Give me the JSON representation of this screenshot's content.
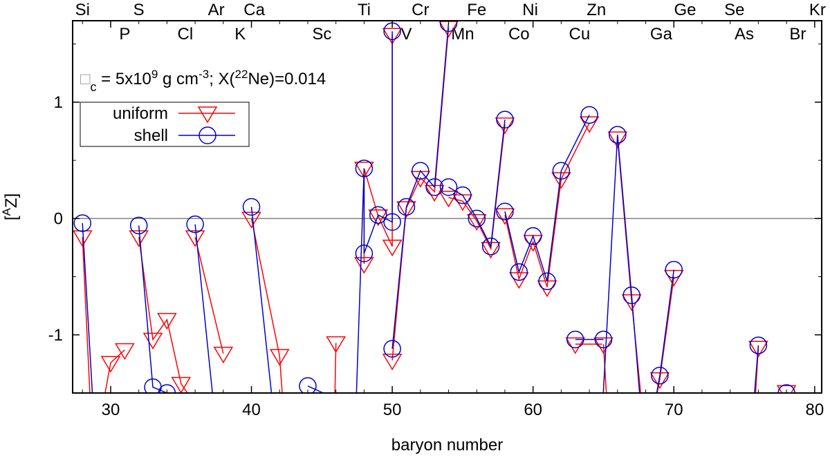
{
  "chart_data": {
    "type": "line",
    "xlabel": "baryon number",
    "ylabel": "[ᴬZ]",
    "ylabel_main": "[",
    "ylabel_sup": "A",
    "ylabel_end": "Z]",
    "xlim": [
      27.3,
      80.5
    ],
    "ylim": [
      -1.5,
      1.7
    ],
    "xticks": [
      30,
      40,
      50,
      60,
      70,
      80
    ],
    "yticks": [
      -1,
      0,
      1
    ],
    "hline": 0,
    "grid": false,
    "annotation": {
      "symbol": "□",
      "sub": "c",
      "mid": " = 5x10",
      "sup1": "9",
      "mid2": " g cm",
      "sup2": "-3",
      "mid3": "; X(",
      "sup3": "22",
      "end": "Ne)=0.014"
    },
    "legend": {
      "position": "upper-left",
      "entries": [
        {
          "label": "uniform",
          "color": "#ff0000",
          "marker": "triangle-down"
        },
        {
          "label": "shell",
          "color": "#0000cc",
          "marker": "circle"
        }
      ]
    },
    "element_labels_top": [
      {
        "text": "Si",
        "x": 28
      },
      {
        "text": "S",
        "x": 32
      },
      {
        "text": "Ar",
        "x": 37.5
      },
      {
        "text": "Ca",
        "x": 40.2
      },
      {
        "text": "Ti",
        "x": 48
      },
      {
        "text": "Cr",
        "x": 52
      },
      {
        "text": "Fe",
        "x": 56
      },
      {
        "text": "Ni",
        "x": 59.8
      },
      {
        "text": "Zn",
        "x": 64.5
      },
      {
        "text": "Ge",
        "x": 70.8
      },
      {
        "text": "Se",
        "x": 74.3
      },
      {
        "text": "Kr",
        "x": 80.2
      }
    ],
    "element_labels_bottom": [
      {
        "text": "P",
        "x": 31
      },
      {
        "text": "Cl",
        "x": 35.3
      },
      {
        "text": "K",
        "x": 39.2
      },
      {
        "text": "Sc",
        "x": 45
      },
      {
        "text": "V",
        "x": 51
      },
      {
        "text": "Mn",
        "x": 55
      },
      {
        "text": "Co",
        "x": 59
      },
      {
        "text": "Cu",
        "x": 63.3
      },
      {
        "text": "Ga",
        "x": 69.1
      },
      {
        "text": "As",
        "x": 75
      },
      {
        "text": "Br",
        "x": 78.8
      }
    ],
    "series": [
      {
        "name": "uniform",
        "color": "#ff0000",
        "marker": "triangle-down",
        "segments": [
          [
            [
              28,
              -0.16
            ],
            [
              28.6,
              -1.7
            ]
          ],
          [
            [
              29.3,
              -1.7
            ],
            [
              30,
              -1.24
            ],
            [
              31,
              -1.13
            ]
          ],
          [
            [
              32,
              -0.16
            ],
            [
              33,
              -1.04
            ],
            [
              34,
              -0.87
            ],
            [
              35,
              -1.42
            ],
            [
              36,
              -1.6
            ]
          ],
          [
            [
              36,
              -0.16
            ],
            [
              38,
              -1.16
            ]
          ],
          [
            [
              40,
              0.0
            ],
            [
              42,
              -1.18
            ],
            [
              42.3,
              -1.7
            ]
          ],
          [
            [
              46,
              -1.07
            ],
            [
              45.9,
              -1.7
            ]
          ],
          [
            [
              48,
              -0.39
            ],
            [
              48,
              0.43
            ],
            [
              49,
              0.02
            ],
            [
              50,
              -0.24
            ],
            [
              50,
              1.58
            ]
          ],
          [
            [
              50,
              -1.22
            ],
            [
              51,
              0.09
            ],
            [
              52,
              0.35
            ],
            [
              53,
              0.23
            ],
            [
              54,
              1.64
            ]
          ],
          [
            [
              54,
              0.18
            ],
            [
              55,
              0.15
            ],
            [
              56,
              -0.02
            ],
            [
              57,
              -0.26
            ],
            [
              58,
              0.81
            ]
          ],
          [
            [
              58,
              0.03
            ],
            [
              59,
              -0.52
            ],
            [
              60,
              -0.2
            ],
            [
              61,
              -0.59
            ],
            [
              62,
              0.34
            ],
            [
              64,
              0.82
            ]
          ],
          [
            [
              66,
              0.69
            ],
            [
              67,
              -0.71
            ],
            [
              67.8,
              -1.7
            ]
          ],
          [
            [
              63,
              -1.08
            ],
            [
              64.9,
              -1.08
            ]
          ],
          [
            [
              65,
              -1.08
            ],
            [
              65.3,
              -1.7
            ]
          ],
          [
            [
              69,
              -1.38
            ],
            [
              70,
              -0.5
            ]
          ],
          [
            [
              69,
              -1.38
            ],
            [
              68.5,
              -1.7
            ]
          ],
          [
            [
              76,
              -1.11
            ],
            [
              75.7,
              -1.7
            ]
          ],
          [
            [
              78,
              -1.49
            ],
            [
              77.7,
              -1.7
            ]
          ]
        ],
        "points": [
          [
            28,
            -0.16
          ],
          [
            30,
            -1.24
          ],
          [
            31,
            -1.13
          ],
          [
            32,
            -0.16
          ],
          [
            33,
            -1.04
          ],
          [
            34,
            -0.87
          ],
          [
            35,
            -1.42
          ],
          [
            36,
            -0.16
          ],
          [
            38,
            -1.16
          ],
          [
            40,
            0.0
          ],
          [
            42,
            -1.18
          ],
          [
            46,
            -1.07
          ],
          [
            48,
            -0.39
          ],
          [
            48,
            0.43
          ],
          [
            49,
            0.02
          ],
          [
            50,
            -0.24
          ],
          [
            50,
            1.58
          ],
          [
            50,
            -1.22
          ],
          [
            51,
            0.09
          ],
          [
            52,
            0.35
          ],
          [
            53,
            0.23
          ],
          [
            54,
            1.64
          ],
          [
            54,
            0.18
          ],
          [
            55,
            0.15
          ],
          [
            56,
            -0.02
          ],
          [
            57,
            -0.26
          ],
          [
            58,
            0.81
          ],
          [
            58,
            0.03
          ],
          [
            59,
            -0.52
          ],
          [
            60,
            -0.2
          ],
          [
            61,
            -0.59
          ],
          [
            62,
            0.34
          ],
          [
            64,
            0.82
          ],
          [
            63,
            -1.08
          ],
          [
            65,
            -1.08
          ],
          [
            66,
            0.69
          ],
          [
            67,
            -0.71
          ],
          [
            69,
            -1.38
          ],
          [
            70,
            -0.5
          ],
          [
            76,
            -1.11
          ],
          [
            78,
            -1.49
          ]
        ]
      },
      {
        "name": "shell",
        "color": "#0000cc",
        "marker": "circle",
        "segments": [
          [
            [
              28,
              -0.04
            ],
            [
              28.8,
              -1.7
            ]
          ],
          [
            [
              32,
              -0.06
            ],
            [
              33,
              -1.45
            ],
            [
              34,
              -1.5
            ]
          ],
          [
            [
              36,
              -0.05
            ],
            [
              37.4,
              -1.7
            ]
          ],
          [
            [
              40,
              0.1
            ],
            [
              41.6,
              -1.7
            ]
          ],
          [
            [
              44,
              -1.44
            ],
            [
              46,
              -1.55
            ]
          ],
          [
            [
              47.4,
              -1.7
            ],
            [
              48,
              0.43
            ],
            [
              48,
              -0.3
            ],
            [
              49,
              0.03
            ],
            [
              50,
              -0.03
            ],
            [
              50,
              1.61
            ]
          ],
          [
            [
              50,
              -1.12
            ],
            [
              51,
              0.1
            ],
            [
              52,
              0.41
            ],
            [
              53,
              0.27
            ],
            [
              54,
              1.68
            ]
          ],
          [
            [
              54,
              0.27
            ],
            [
              55,
              0.2
            ],
            [
              56,
              0.0
            ],
            [
              57,
              -0.24
            ],
            [
              58,
              0.85
            ]
          ],
          [
            [
              58,
              0.06
            ],
            [
              59,
              -0.46
            ],
            [
              60,
              -0.15
            ],
            [
              61,
              -0.54
            ],
            [
              62,
              0.41
            ],
            [
              64,
              0.89
            ]
          ],
          [
            [
              64.9,
              -1.7
            ],
            [
              66,
              0.72
            ],
            [
              67,
              -0.66
            ],
            [
              67.7,
              -1.7
            ]
          ],
          [
            [
              63,
              -1.04
            ],
            [
              65,
              -1.04
            ]
          ],
          [
            [
              68.5,
              -1.7
            ],
            [
              69,
              -1.35
            ],
            [
              70,
              -0.44
            ]
          ],
          [
            [
              75.6,
              -1.7
            ],
            [
              76,
              -1.09
            ]
          ]
        ],
        "points": [
          [
            28,
            -0.04
          ],
          [
            32,
            -0.06
          ],
          [
            33,
            -1.45
          ],
          [
            34,
            -1.5
          ],
          [
            36,
            -0.05
          ],
          [
            40,
            0.1
          ],
          [
            44,
            -1.44
          ],
          [
            48,
            0.43
          ],
          [
            48,
            -0.3
          ],
          [
            49,
            0.03
          ],
          [
            50,
            -0.03
          ],
          [
            50,
            1.61
          ],
          [
            50,
            -1.12
          ],
          [
            51,
            0.1
          ],
          [
            52,
            0.41
          ],
          [
            53,
            0.27
          ],
          [
            54,
            1.68
          ],
          [
            54,
            0.27
          ],
          [
            55,
            0.2
          ],
          [
            56,
            0.0
          ],
          [
            57,
            -0.24
          ],
          [
            58,
            0.85
          ],
          [
            58,
            0.06
          ],
          [
            59,
            -0.46
          ],
          [
            60,
            -0.15
          ],
          [
            61,
            -0.54
          ],
          [
            62,
            0.41
          ],
          [
            64,
            0.89
          ],
          [
            63,
            -1.04
          ],
          [
            65,
            -1.04
          ],
          [
            66,
            0.72
          ],
          [
            67,
            -0.66
          ],
          [
            69,
            -1.35
          ],
          [
            70,
            -0.44
          ],
          [
            76,
            -1.09
          ],
          [
            78,
            -1.5
          ]
        ]
      }
    ]
  }
}
